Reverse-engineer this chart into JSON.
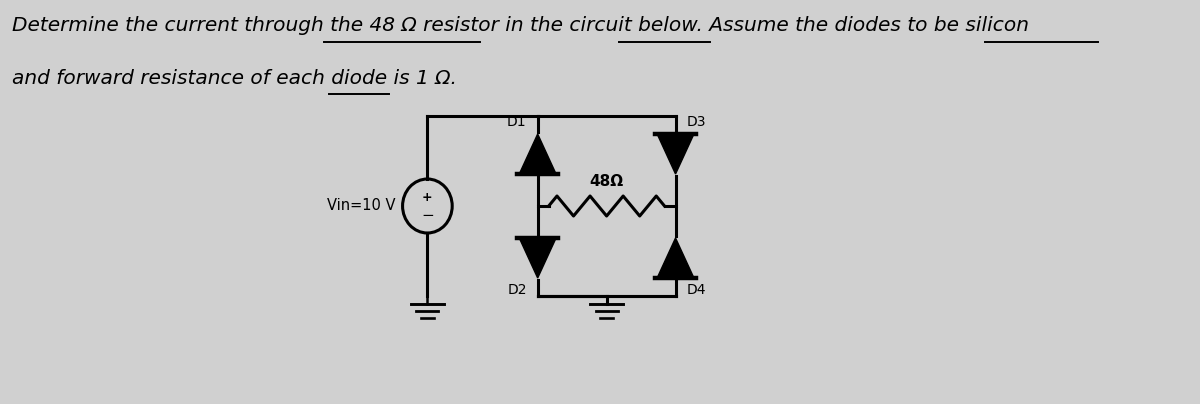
{
  "bg_color": "#d0d0d0",
  "text_line1": "Determine the current through the 48 Ω resistor in the circuit below. Assume the diodes to be silicon",
  "text_line2": "and forward resistance of each diode is 1 Ω.",
  "text_fontsize": 14.5,
  "vin_label": "Vin=10 V",
  "d1_label": "D1",
  "d2_label": "D2",
  "d3_label": "D3",
  "d4_label": "D4",
  "r_label": "48Ω",
  "underline_color": "#333333"
}
